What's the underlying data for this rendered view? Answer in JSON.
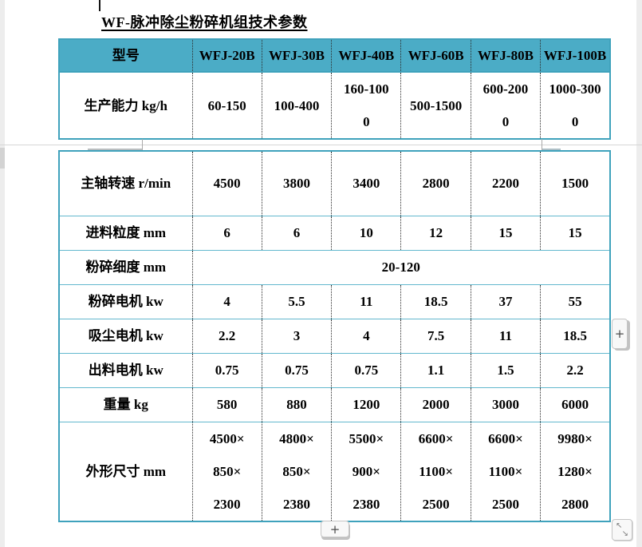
{
  "page": {
    "title": "WF-脉冲除尘粉碎机组技术参数"
  },
  "table": {
    "header": [
      "型号",
      "WFJ-20B",
      "WFJ-30B",
      "WFJ-40B",
      "WFJ-60B",
      "WFJ-80B",
      "WFJ-100B"
    ],
    "rows_page1": [
      {
        "label": "生产能力 kg/h",
        "cells": [
          "60-150",
          "100-400",
          "160-100\n0",
          "500-1500",
          "600-200\n0",
          "1000-300\n0"
        ]
      }
    ],
    "rows_page2": [
      {
        "label": "主轴转速 r/min",
        "cells": [
          "4500",
          "3800",
          "3400",
          "2800",
          "2200",
          "1500"
        ]
      },
      {
        "label": "进料粒度 mm",
        "cells": [
          "6",
          "6",
          "10",
          "12",
          "15",
          "15"
        ]
      },
      {
        "label": "粉碎细度 mm",
        "cells": [
          "20-120"
        ]
      },
      {
        "label": "粉碎电机 kw",
        "cells": [
          "4",
          "5.5",
          "11",
          "18.5",
          "37",
          "55"
        ]
      },
      {
        "label": "吸尘电机 kw",
        "cells": [
          "2.2",
          "3",
          "4",
          "7.5",
          "11",
          "18.5"
        ]
      },
      {
        "label": "出料电机 kw",
        "cells": [
          "0.75",
          "0.75",
          "0.75",
          "1.1",
          "1.5",
          "2.2"
        ]
      },
      {
        "label": "重量 kg",
        "cells": [
          "580",
          "880",
          "1200",
          "2000",
          "3000",
          "6000"
        ]
      },
      {
        "label": "外形尺寸 mm",
        "cells": [
          "4500×\n850×\n2300",
          "4800×\n850×\n2380",
          "5500×\n900×\n2380",
          "6600×\n1100×\n2500",
          "6600×\n1100×\n2500",
          "9980×\n1280×\n2800"
        ]
      }
    ]
  },
  "controls": {
    "add_row_label": "+",
    "add_column_label": "+",
    "expand_nw_glyph": "↖",
    "expand_se_glyph": "↘"
  },
  "colors": {
    "accent": "#4BACC6",
    "border": "#3FA2BC"
  }
}
